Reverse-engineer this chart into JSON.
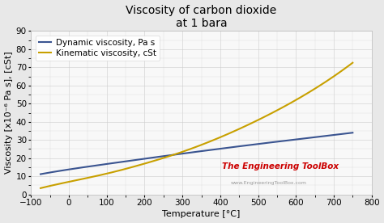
{
  "title_line1": "Viscosity of carbon dioxide",
  "title_line2": "at 1 bara",
  "xlabel": "Temperature [°C]",
  "ylabel": "Viscosity [x10⁻⁶ Pa s], [cSt]",
  "xlim": [
    -100,
    800
  ],
  "ylim": [
    0,
    90
  ],
  "xticks": [
    -100,
    0,
    100,
    200,
    300,
    400,
    500,
    600,
    700,
    800
  ],
  "yticks": [
    0,
    10,
    20,
    30,
    40,
    50,
    60,
    70,
    80,
    90
  ],
  "dynamic_color": "#3A5490",
  "kinematic_color": "#C8A000",
  "figure_bg": "#E8E8E8",
  "plot_bg": "#F8F8F8",
  "dynamic_x": [
    -75,
    0,
    100,
    200,
    300,
    400,
    500,
    600,
    700,
    750
  ],
  "dynamic_y": [
    11.2,
    13.8,
    16.8,
    19.7,
    22.5,
    25.2,
    27.8,
    30.3,
    32.8,
    34.0
  ],
  "kinematic_x": [
    -75,
    0,
    100,
    200,
    300,
    400,
    500,
    600,
    700,
    750
  ],
  "kinematic_y": [
    3.5,
    7.0,
    11.5,
    17.0,
    23.5,
    31.5,
    41.0,
    52.0,
    65.0,
    72.5
  ],
  "legend_labels": [
    "Dynamic viscosity, Pa s",
    "Kinematic viscosity, cSt"
  ],
  "watermark_main": "The Engineering ToolBox",
  "watermark_sub": "www.EngineeringToolBox.com",
  "watermark_color": "#CC0000",
  "watermark_sub_color": "#999999",
  "title_fontsize": 10,
  "label_fontsize": 8,
  "tick_fontsize": 7.5,
  "legend_fontsize": 7.5,
  "line_width": 1.5
}
